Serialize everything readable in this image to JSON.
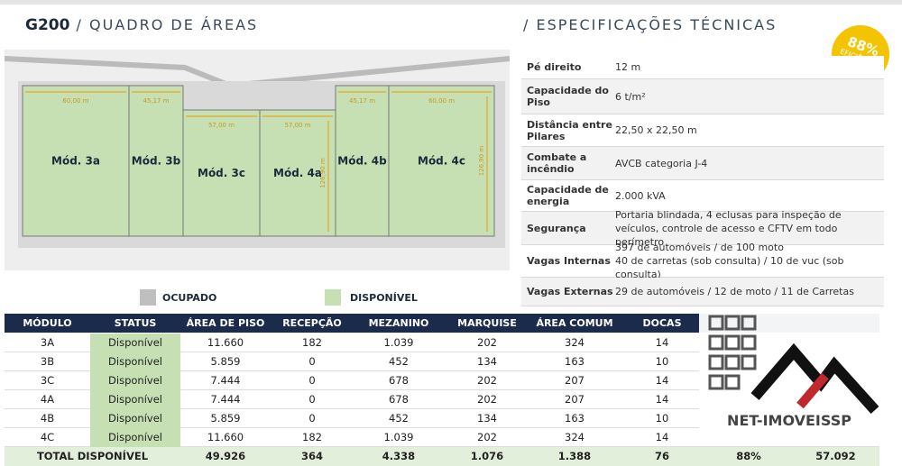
{
  "header": {
    "code": "G200",
    "title": "/ QUADRO DE ÁREAS",
    "specs_title": "/ ESPECIFICAÇÕES TÉCNICAS"
  },
  "badge": {
    "value": "88%",
    "label": "EFICIÊNCIA"
  },
  "plan": {
    "modules": [
      {
        "label": "Mód. 3a",
        "width": "60,00 m"
      },
      {
        "label": "Mód. 3b",
        "width": "45,17 m"
      },
      {
        "label": "Mód. 3c",
        "width": "57,00 m"
      },
      {
        "label": "Mód. 4a",
        "width": "57,00 m",
        "depth": "126,90 m"
      },
      {
        "label": "Mód. 4b",
        "width": "45,17 m"
      },
      {
        "label": "Mód. 4c",
        "width": "60,00 m",
        "depth": "126,90 m"
      }
    ]
  },
  "legend": {
    "occupied": "OCUPADO",
    "available": "DISPONÍVEL"
  },
  "specs": [
    {
      "label": "Pé direito",
      "value": "12 m"
    },
    {
      "label": "Capacidade do Piso",
      "value": "6 t/m²"
    },
    {
      "label": "Distância entre Pilares",
      "value": "22,50 x 22,50 m"
    },
    {
      "label": "Combate a incêndio",
      "value": "AVCB categoria J-4"
    },
    {
      "label": "Capacidade de energia",
      "value": "2.000 kVA"
    },
    {
      "label": "Segurança",
      "value": "Portaria blindada, 4 eclusas para inspeção de veículos, controle de acesso e CFTV em todo perímetro"
    },
    {
      "label": "Vagas Internas",
      "value": "397 de automóveis / de 100 moto\n40 de carretas (sob consulta) / 10 de vuc (sob consulta)"
    },
    {
      "label": "Vagas Externas",
      "value": "29 de automóveis / 12 de moto / 11 de Carretas"
    }
  ],
  "table": {
    "headers": [
      "MÓDULO",
      "STATUS",
      "ÁREA DE PISO",
      "RECEPÇÃO",
      "MEZANINO",
      "MARQUISE",
      "ÁREA COMUM",
      "DOCAS"
    ],
    "rows": [
      [
        "3A",
        "Disponível",
        "11.660",
        "182",
        "1.039",
        "202",
        "324",
        "14"
      ],
      [
        "3B",
        "Disponível",
        "5.859",
        "0",
        "452",
        "134",
        "163",
        "10"
      ],
      [
        "3C",
        "Disponível",
        "7.444",
        "0",
        "678",
        "202",
        "207",
        "14"
      ],
      [
        "4A",
        "Disponível",
        "7.444",
        "0",
        "678",
        "202",
        "207",
        "14"
      ],
      [
        "4B",
        "Disponível",
        "5.859",
        "0",
        "452",
        "134",
        "163",
        "10"
      ],
      [
        "4C",
        "Disponível",
        "11.660",
        "182",
        "1.039",
        "202",
        "324",
        "14"
      ]
    ],
    "total": [
      "TOTAL DISPONÍVEL",
      "49.926",
      "364",
      "4.338",
      "1.076",
      "1.388",
      "76",
      "88%",
      "57.092"
    ]
  },
  "watermark": "NET-IMOVEISSP"
}
